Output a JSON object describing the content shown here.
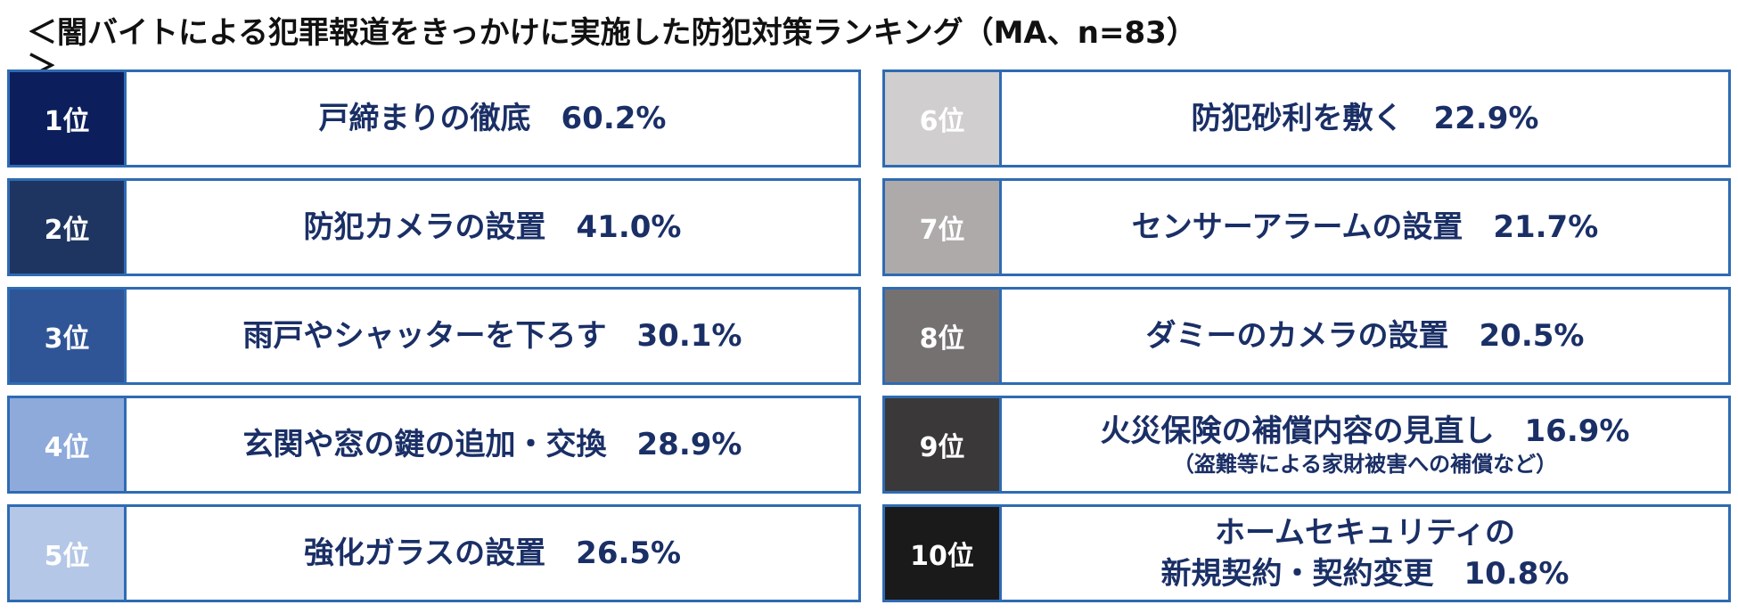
{
  "chart_data": {
    "type": "table",
    "title": "＜闇バイトによる犯罪報道をきっかけに実施した防犯対策ランキング（MA、n=83）",
    "title_tail": "＞",
    "unit": "%",
    "rows": [
      {
        "rank": "1位",
        "label": "戸締まりの徹底",
        "value": 60.2,
        "value_text": "60.2%",
        "rank_color": "#0c1f5c"
      },
      {
        "rank": "2位",
        "label": "防犯カメラの設置",
        "value": 41.0,
        "value_text": "41.0%",
        "rank_color": "#1f3561"
      },
      {
        "rank": "3位",
        "label": "雨戸やシャッターを下ろす",
        "value": 30.1,
        "value_text": "30.1%",
        "rank_color": "#2f5597"
      },
      {
        "rank": "4位",
        "label": "玄関や窓の鍵の追加・交換",
        "value": 28.9,
        "value_text": "28.9%",
        "rank_color": "#8eaadb"
      },
      {
        "rank": "5位",
        "label": "強化ガラスの設置",
        "value": 26.5,
        "value_text": "26.5%",
        "rank_color": "#b4c7e7"
      },
      {
        "rank": "6位",
        "label": "防犯砂利を敷く",
        "value": 22.9,
        "value_text": "22.9%",
        "rank_color": "#d0cece"
      },
      {
        "rank": "7位",
        "label": "センサーアラームの設置",
        "value": 21.7,
        "value_text": "21.7%",
        "rank_color": "#aeaaaa"
      },
      {
        "rank": "8位",
        "label": "ダミーのカメラの設置",
        "value": 20.5,
        "value_text": "20.5%",
        "rank_color": "#767171"
      },
      {
        "rank": "9位",
        "label": "火災保険の補償内容の見直し",
        "sublabel": "（盗難等による家財被害への補償など）",
        "value": 16.9,
        "value_text": "16.9%",
        "rank_color": "#3a3838"
      },
      {
        "rank": "10位",
        "label": "ホームセキュリティの",
        "label2": "新規契約・契約変更",
        "value": 10.8,
        "value_text": "10.8%",
        "rank_color": "#1a1a1a"
      }
    ]
  }
}
